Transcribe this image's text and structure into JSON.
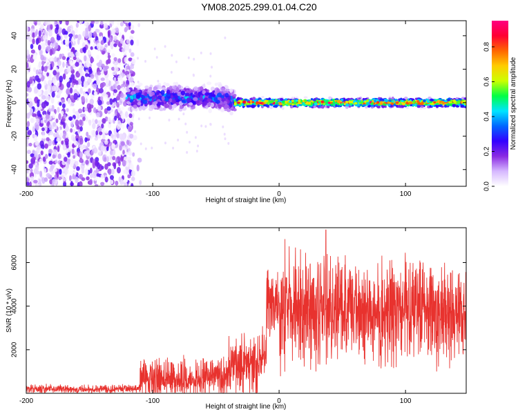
{
  "title": "YM08.2025.299.01.04.C20",
  "chart_data": [
    {
      "type": "heatmap",
      "title": "YM08.2025.299.01.04.C20",
      "xlabel": "Height of straight line (km)",
      "ylabel": "Frequency (Hz)",
      "xlim": [
        -200,
        148
      ],
      "ylim": [
        -50,
        49
      ],
      "x_ticks": [
        -200,
        -100,
        0,
        100
      ],
      "x_tick_labels": [
        "-200",
        "-100",
        "0",
        "100"
      ],
      "y_ticks": [
        -40,
        -20,
        0,
        20,
        40
      ],
      "y_tick_labels": [
        "-40",
        "-20",
        "0",
        "20",
        "40"
      ],
      "colorbar": {
        "label": "Normalized spectral amplitude",
        "range": [
          0,
          0.95
        ],
        "ticks": [
          0,
          0.2,
          0.4,
          0.6,
          0.8
        ],
        "tick_labels": [
          "0.0",
          "0.2",
          "0.4",
          "0.6",
          "0.8"
        ],
        "colormap": [
          "#ffffff",
          "#d6b8ff",
          "#8a2be2",
          "#3300ff",
          "#0066ff",
          "#00e5ff",
          "#00ff44",
          "#ccff00",
          "#ffcc00",
          "#ff6600",
          "#ff0033",
          "#ff0080"
        ]
      },
      "regions": [
        {
          "x_range": [
            -200,
            -115
          ],
          "f_range": [
            -50,
            49
          ],
          "description_amplitude": 0.15
        },
        {
          "x_range": [
            -120,
            -35
          ],
          "f_center": 3,
          "f_width": 12,
          "peak_amplitude": 0.35
        },
        {
          "x_range": [
            -35,
            148
          ],
          "f_center": 0,
          "f_width": 5,
          "peak_amplitude": 0.9
        }
      ]
    },
    {
      "type": "line",
      "xlabel": "Height of straight line (km)",
      "ylabel": "SNR (10 * v/v)",
      "xlim": [
        -200,
        148
      ],
      "ylim": [
        0,
        7600
      ],
      "x_ticks": [
        -200,
        -100,
        0,
        100
      ],
      "x_tick_labels": [
        "-200",
        "-100",
        "0",
        "100"
      ],
      "y_ticks": [
        2000,
        4000,
        6000
      ],
      "y_tick_labels": [
        "2000",
        "4000",
        "6000"
      ],
      "color": "#e8322e",
      "segments": [
        {
          "x_range": [
            -200,
            -110
          ],
          "mean": 200,
          "spread": 250
        },
        {
          "x_range": [
            -110,
            -40
          ],
          "mean": 700,
          "spread": 1100
        },
        {
          "x_range": [
            -40,
            -17
          ],
          "mean": 1300,
          "spread": 1800
        },
        {
          "x_range": [
            -17,
            -10
          ],
          "mean": 1700,
          "spread": 1500
        },
        {
          "x_range": [
            -10,
            0
          ],
          "mean": 4000,
          "spread": 2200
        },
        {
          "x_range": [
            0,
            40
          ],
          "mean": 3900,
          "spread": 3300
        },
        {
          "x_range": [
            40,
            148
          ],
          "mean": 3800,
          "spread": 2900
        }
      ],
      "peak": {
        "x": 37,
        "y": 7500
      }
    }
  ]
}
